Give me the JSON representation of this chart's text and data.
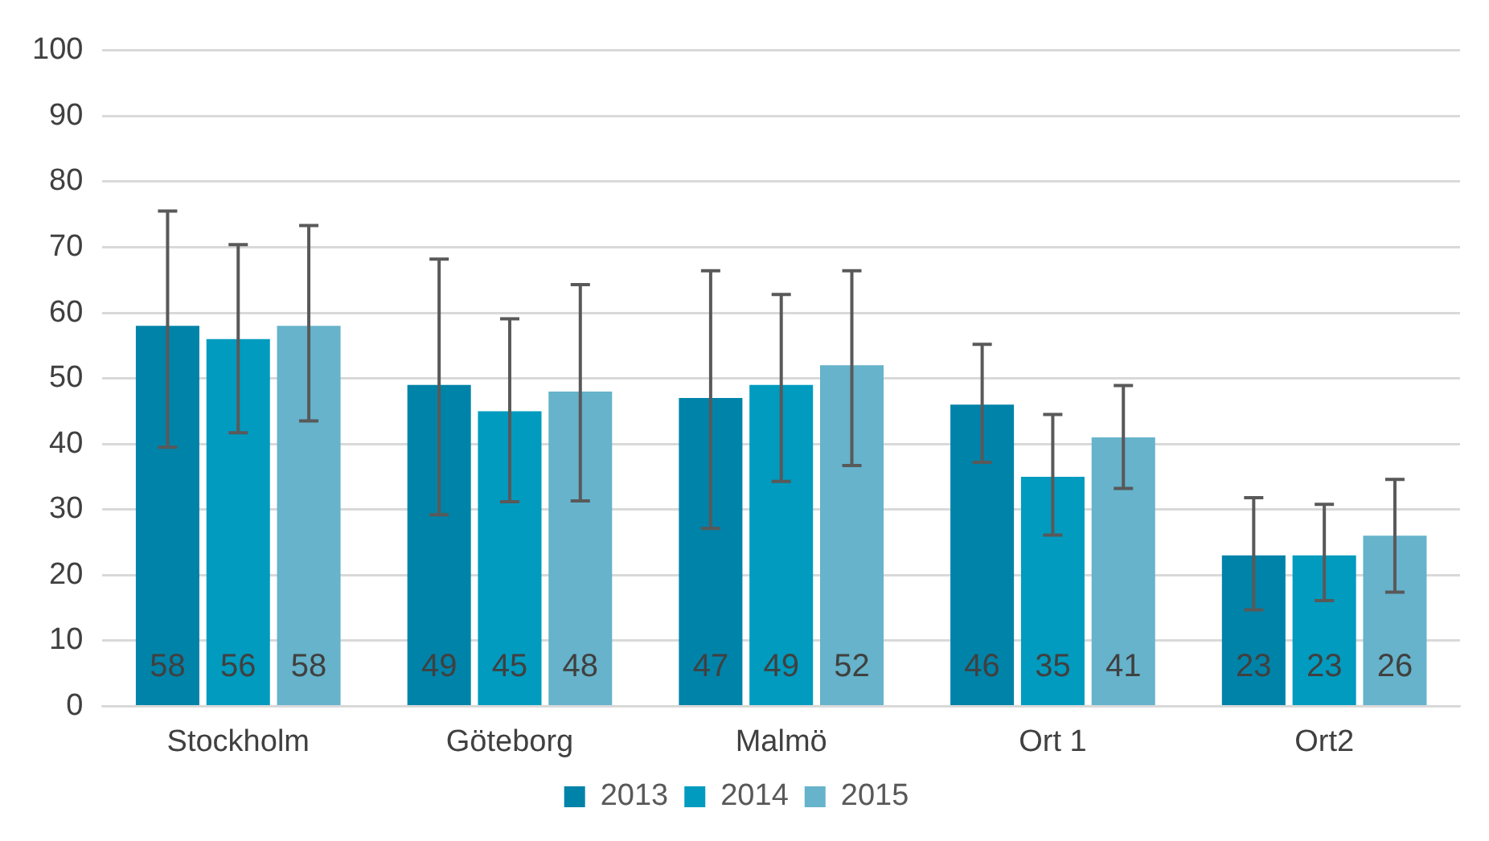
{
  "chart_data": {
    "type": "bar",
    "categories": [
      "Stockholm",
      "Göteborg",
      "Malmö",
      "Ort 1",
      "Ort2"
    ],
    "series": [
      {
        "name": "2013",
        "color": "#0083a9",
        "values": [
          58,
          49,
          47,
          46,
          23
        ],
        "errors": [
          [
            39.5,
            75.5
          ],
          [
            29.2,
            68.2
          ],
          [
            27.1,
            66.4
          ],
          [
            37.2,
            55.2
          ],
          [
            14.7,
            31.8
          ]
        ]
      },
      {
        "name": "2014",
        "color": "#009bbf",
        "values": [
          56,
          45,
          49,
          35,
          23
        ],
        "errors": [
          [
            41.7,
            70.4
          ],
          [
            31.2,
            59.1
          ],
          [
            34.3,
            62.8
          ],
          [
            26.1,
            44.5
          ],
          [
            16.1,
            30.8
          ]
        ]
      },
      {
        "name": "2015",
        "color": "#66b3cb",
        "values": [
          58,
          48,
          52,
          41,
          26
        ],
        "errors": [
          [
            43.5,
            73.3
          ],
          [
            31.3,
            64.3
          ],
          [
            36.7,
            66.4
          ],
          [
            33.2,
            48.9
          ],
          [
            17.4,
            34.6
          ]
        ]
      }
    ],
    "ylim": [
      0,
      100
    ],
    "yticks": [
      0,
      10,
      20,
      30,
      40,
      50,
      60,
      70,
      80,
      90,
      100
    ],
    "grid": "y",
    "legend": "bottom",
    "data_labels": true
  }
}
